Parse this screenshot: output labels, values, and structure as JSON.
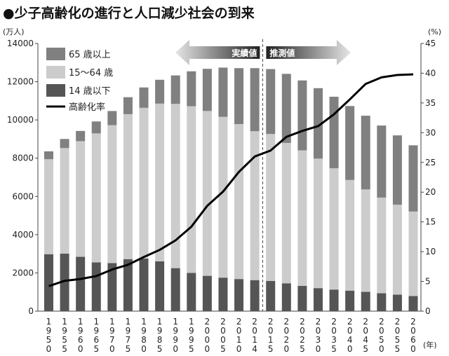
{
  "title": "●少子高齢化の進行と人口減少社会の到来",
  "chart_data": {
    "type": "bar",
    "stacked": true,
    "title": "●少子高齢化の進行と人口減少社会の到来",
    "ylabel_left": "(万人)",
    "ylabel_right": "(%)",
    "xlabel": "(年)",
    "ylim_left": [
      0,
      14000
    ],
    "ylim_right": [
      0,
      45
    ],
    "yticks_left": [
      "0",
      "2000",
      "4000",
      "6000",
      "8000",
      "10000",
      "12000",
      "14000"
    ],
    "yticks_right": [
      "0",
      "5",
      "10",
      "15",
      "20",
      "25",
      "30",
      "35",
      "40",
      "45"
    ],
    "grid": false,
    "legend_position": "top-left",
    "categories": [
      "1950",
      "1955",
      "1960",
      "1965",
      "1970",
      "1975",
      "1980",
      "1985",
      "1990",
      "1995",
      "2000",
      "2005",
      "2010",
      "2014",
      "2015",
      "2020",
      "2025",
      "2030",
      "2035",
      "2040",
      "2045",
      "2050",
      "2055",
      "2060"
    ],
    "series": [
      {
        "name": "14 歳以下",
        "color": "#555555",
        "values": [
          2979,
          3012,
          2843,
          2553,
          2515,
          2722,
          2751,
          2603,
          2249,
          2001,
          1847,
          1752,
          1680,
          1623,
          1583,
          1457,
          1324,
          1204,
          1129,
          1073,
          1012,
          939,
          861,
          791
        ]
      },
      {
        "name": "15～64 歳",
        "color": "#cccccc",
        "values": [
          4966,
          5517,
          6047,
          6744,
          7212,
          7581,
          7883,
          8251,
          8590,
          8716,
          8622,
          8409,
          8103,
          7785,
          7682,
          7341,
          7085,
          6773,
          6343,
          5787,
          5353,
          5001,
          4706,
          4418
        ]
      },
      {
        "name": "65 歳以上",
        "color": "#808080",
        "values": [
          411,
          475,
          535,
          624,
          739,
          887,
          1065,
          1247,
          1489,
          1826,
          2204,
          2576,
          2925,
          3300,
          3395,
          3612,
          3657,
          3685,
          3741,
          3868,
          3856,
          3768,
          3626,
          3464
        ]
      },
      {
        "name": "高齢化率",
        "type": "line",
        "axis": "right",
        "color": "#000000",
        "values": [
          4.2,
          5.1,
          5.4,
          5.9,
          7.0,
          7.8,
          9.1,
          10.3,
          11.9,
          14.2,
          17.7,
          20.1,
          23.4,
          26.0,
          27.0,
          29.3,
          30.3,
          31.1,
          33.1,
          35.6,
          38.2,
          39.3,
          39.7,
          39.8
        ]
      }
    ],
    "annotations": {
      "actual": "実績値",
      "projected": "推測値"
    }
  }
}
